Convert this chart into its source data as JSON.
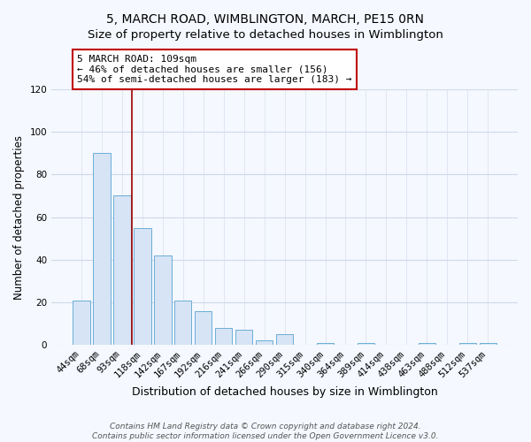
{
  "title": "5, MARCH ROAD, WIMBLINGTON, MARCH, PE15 0RN",
  "subtitle": "Size of property relative to detached houses in Wimblington",
  "xlabel": "Distribution of detached houses by size in Wimblington",
  "ylabel": "Number of detached properties",
  "bar_labels": [
    "44sqm",
    "68sqm",
    "93sqm",
    "118sqm",
    "142sqm",
    "167sqm",
    "192sqm",
    "216sqm",
    "241sqm",
    "266sqm",
    "290sqm",
    "315sqm",
    "340sqm",
    "364sqm",
    "389sqm",
    "414sqm",
    "438sqm",
    "463sqm",
    "488sqm",
    "512sqm",
    "537sqm"
  ],
  "bar_heights": [
    21,
    90,
    70,
    55,
    42,
    21,
    16,
    8,
    7,
    2,
    5,
    0,
    1,
    0,
    1,
    0,
    0,
    1,
    0,
    1,
    1
  ],
  "bar_color": "#d6e4f5",
  "bar_edge_color": "#6baed6",
  "vline_x": 2.5,
  "vline_color": "#9b0000",
  "annotation_text": "5 MARCH ROAD: 109sqm\n← 46% of detached houses are smaller (156)\n54% of semi-detached houses are larger (183) →",
  "annotation_box_color": "#ffffff",
  "annotation_box_edge": "#c00000",
  "ylim": [
    0,
    120
  ],
  "yticks": [
    0,
    20,
    40,
    60,
    80,
    100,
    120
  ],
  "footer_line1": "Contains HM Land Registry data © Crown copyright and database right 2024.",
  "footer_line2": "Contains public sector information licensed under the Open Government Licence v3.0.",
  "bg_color": "#f5f8ff",
  "plot_bg_color": "#f5f8ff",
  "title_fontsize": 10,
  "xlabel_fontsize": 9,
  "ylabel_fontsize": 8.5,
  "tick_fontsize": 7.5,
  "footer_fontsize": 6.5,
  "grid_color": "#d0d8e8"
}
